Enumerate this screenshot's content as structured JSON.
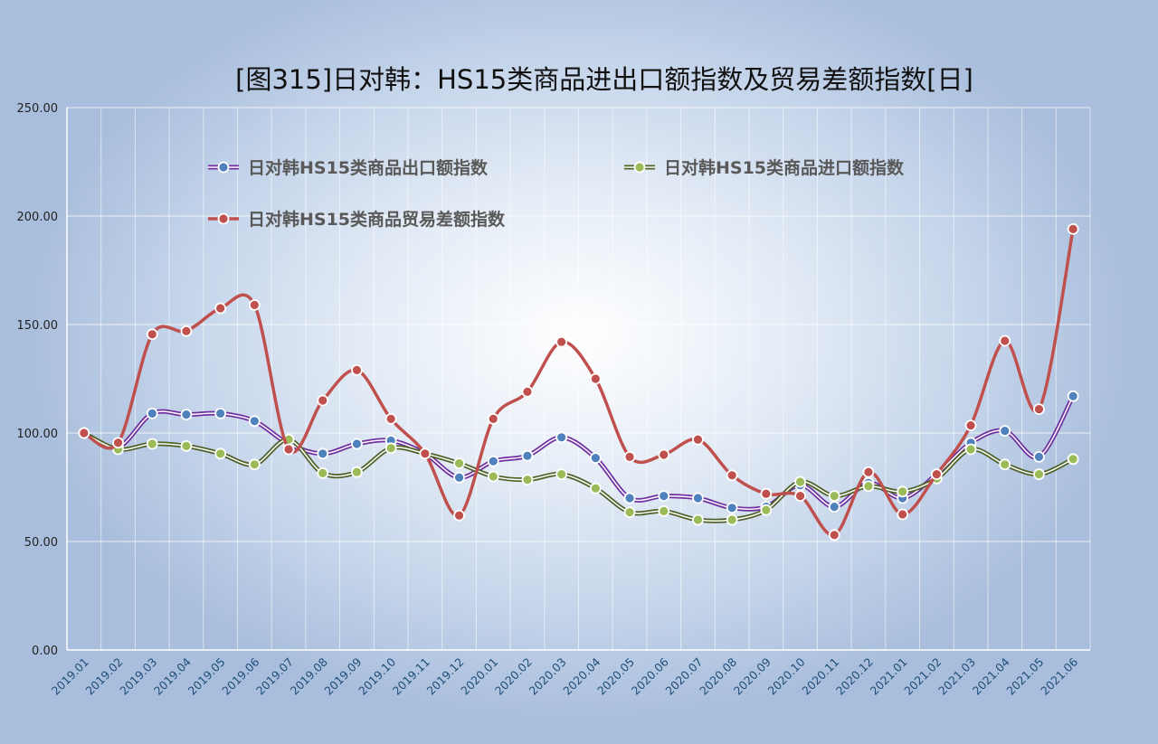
{
  "chart_data": {
    "type": "line",
    "title": "[图315]日对韩：HS15类商品进出口额指数及贸易差额指数[日]",
    "xlabel": "",
    "ylabel": "",
    "ylim": [
      0,
      250
    ],
    "yticks": [
      "0.00",
      "50.00",
      "100.00",
      "150.00",
      "200.00",
      "250.00"
    ],
    "grid": true,
    "legend_position": "top-left",
    "categories": [
      "2019.01",
      "2019.02",
      "2019.03",
      "2019.04",
      "2019.05",
      "2019.06",
      "2019.07",
      "2019.08",
      "2019.09",
      "2019.10",
      "2019.11",
      "2019.12",
      "2020.01",
      "2020.02",
      "2020.03",
      "2020.04",
      "2020.05",
      "2020.06",
      "2020.07",
      "2020.08",
      "2020.09",
      "2020.10",
      "2020.11",
      "2020.12",
      "2021.01",
      "2021.02",
      "2021.03",
      "2021.04",
      "2021.05",
      "2021.06"
    ],
    "series": [
      {
        "name": "日对韩HS15类商品出口额指数",
        "line_color": "#7030a0",
        "marker_color": "#4f81bd",
        "values": [
          100,
          93.5,
          109,
          108.5,
          109,
          105.5,
          95,
          90.5,
          95,
          96.5,
          90.5,
          79.5,
          87,
          89.5,
          98,
          88.5,
          70,
          71,
          70,
          65.5,
          66,
          76,
          66,
          77,
          70,
          81,
          95.5,
          101,
          89,
          117
        ]
      },
      {
        "name": "日对韩HS15类商品进口额指数",
        "line_color": "#4f6228",
        "marker_color": "#9bbb59",
        "values": [
          100,
          92.5,
          95,
          94,
          90.5,
          85.5,
          97,
          81.5,
          82,
          93,
          90.5,
          86,
          80,
          78.5,
          81,
          74.5,
          63.5,
          64,
          60,
          60,
          64.5,
          77.5,
          71,
          75.5,
          73,
          79,
          92.5,
          85.5,
          81,
          88
        ]
      },
      {
        "name": "日对韩HS15类商品贸易差额指数",
        "line_color": "#c0504d",
        "marker_color": "#c0504d",
        "values": [
          100,
          95.5,
          145.5,
          147,
          157.5,
          159,
          92.5,
          115,
          129,
          106.5,
          90.5,
          62,
          106.5,
          119,
          142,
          125,
          89,
          90,
          97,
          80.5,
          72,
          71,
          53,
          82,
          62.5,
          81,
          103.5,
          142.5,
          111,
          194
        ]
      }
    ]
  }
}
